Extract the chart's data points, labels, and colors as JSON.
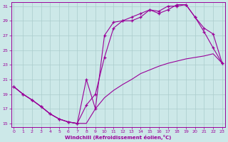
{
  "xlabel": "Windchill (Refroidissement éolien,°C)",
  "bg_color": "#cce8e8",
  "line_color": "#990099",
  "grid_color": "#aacccc",
  "xlim": [
    -0.3,
    23.3
  ],
  "ylim": [
    14.5,
    31.5
  ],
  "xticks": [
    0,
    1,
    2,
    3,
    4,
    5,
    6,
    7,
    8,
    9,
    10,
    11,
    12,
    13,
    14,
    15,
    16,
    17,
    18,
    19,
    20,
    21,
    22,
    23
  ],
  "yticks": [
    15,
    17,
    19,
    21,
    23,
    25,
    27,
    29,
    31
  ],
  "line1_x": [
    0,
    1,
    2,
    3,
    4,
    5,
    6,
    7,
    8,
    9,
    10,
    11,
    12,
    13,
    14,
    15,
    16,
    17,
    18,
    19,
    20,
    21,
    22,
    23
  ],
  "line1_y": [
    20.0,
    19.0,
    18.2,
    17.3,
    16.3,
    15.6,
    15.2,
    15.0,
    15.0,
    17.0,
    18.5,
    19.5,
    20.3,
    21.0,
    21.8,
    22.3,
    22.8,
    23.2,
    23.5,
    23.8,
    24.0,
    24.2,
    24.5,
    23.2
  ],
  "line2_x": [
    0,
    1,
    2,
    3,
    4,
    5,
    6,
    7,
    8,
    9,
    10,
    11,
    12,
    13,
    14,
    15,
    16,
    17,
    18,
    19,
    20,
    21,
    22,
    23
  ],
  "line2_y": [
    20.0,
    19.0,
    18.2,
    17.3,
    16.3,
    15.6,
    15.2,
    15.0,
    21.0,
    17.0,
    27.0,
    28.8,
    29.0,
    29.0,
    29.5,
    30.5,
    30.3,
    31.0,
    31.0,
    31.2,
    29.5,
    27.5,
    25.3,
    23.2
  ],
  "line3_x": [
    0,
    1,
    2,
    3,
    4,
    5,
    6,
    7,
    8,
    9,
    10,
    11,
    12,
    13,
    14,
    15,
    16,
    17,
    18,
    19,
    20,
    21,
    22,
    23
  ],
  "line3_y": [
    20.0,
    19.0,
    18.2,
    17.3,
    16.3,
    15.6,
    15.2,
    15.0,
    17.5,
    19.0,
    24.0,
    28.0,
    29.0,
    29.5,
    30.0,
    30.5,
    30.0,
    30.5,
    31.2,
    31.2,
    29.5,
    28.0,
    27.2,
    23.2
  ]
}
